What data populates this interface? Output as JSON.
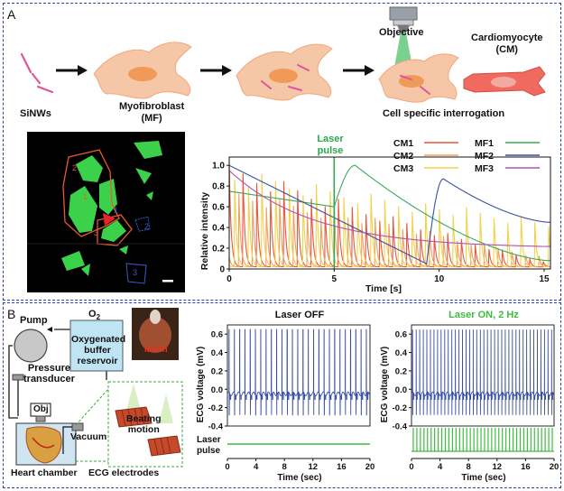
{
  "panel_a": {
    "letter": "A",
    "schematic": {
      "sinws": "SiNWs",
      "mf_line1": "Myofibroblast",
      "mf_line2": "(MF)",
      "objective": "Objective",
      "cm_line1": "Cardiomyocyte",
      "cm_line2": "(CM)",
      "interrogation": "Cell specific interrogation"
    },
    "micrograph": {
      "labels": [
        "1",
        "2",
        "3",
        "1",
        "2",
        "3"
      ]
    },
    "colors": {
      "CM1": "#e8553a",
      "CM2": "#f0a060",
      "CM3": "#f2d24a",
      "MF1": "#3aaa5a",
      "MF2": "#3a4fa0",
      "MF3": "#b052b8",
      "laser": "#2aa84a"
    },
    "chart_data": {
      "type": "line",
      "title": "",
      "xlabel": "Time [s]",
      "ylabel": "Relative intensity",
      "xlim": [
        0,
        15.3
      ],
      "ylim": [
        0,
        1.08
      ],
      "xticks": [
        "0",
        "5",
        "10",
        "15"
      ],
      "yticks": [
        "0",
        "0.2",
        "0.4",
        "0.6",
        "0.8",
        "1.0"
      ],
      "annotation": {
        "line1": "Laser",
        "line2": "pulse",
        "x": 5
      },
      "legend": [
        "CM1",
        "CM2",
        "CM3",
        "MF1",
        "MF2",
        "MF3"
      ],
      "series": [
        {
          "name": "CM1",
          "model": "beating",
          "period": 0.65,
          "start": 0.0,
          "decay_from": 1.0,
          "decay_to": 0.05
        },
        {
          "name": "CM2",
          "model": "beating",
          "period": 0.65,
          "start": 0.2,
          "decay_from": 0.8,
          "decay_to": 0.1
        },
        {
          "name": "CM3",
          "model": "beating",
          "period": 0.65,
          "start": 0.4,
          "decay_from": 0.97,
          "decay_to": 0.45
        },
        {
          "name": "MF1",
          "model": "pulse",
          "baseline": [
            0.75,
            0.6
          ],
          "onset": 5.0,
          "peak_time": 6.0,
          "peak": 1.0,
          "end": 0.08
        },
        {
          "name": "MF2",
          "model": "pulse",
          "baseline": [
            1.0,
            0.05
          ],
          "onset": 9.4,
          "peak_time": 10.2,
          "peak": 0.87,
          "end": 0.45
        },
        {
          "name": "MF3",
          "model": "decay",
          "start_value": 0.95,
          "end_value": 0.2
        }
      ]
    }
  },
  "panel_b": {
    "letter": "B",
    "schematic": {
      "pump": "Pump",
      "o2": "O",
      "o2_sub": "2",
      "buffer_line1": "Oxygenated",
      "buffer_line2": "buffer",
      "buffer_line3": "reservoir",
      "mesh": "Mesh",
      "pressure_line1": "Pressure",
      "pressure_line2": "transducer",
      "obj": "Obj",
      "vacuum": "Vacuum",
      "beating_line1": "Beating",
      "beating_line2": "motion",
      "heart_chamber": "Heart chamber",
      "ecg_electrodes": "ECG electrodes"
    },
    "colors": {
      "ecg": "#3a50a6",
      "laser_on": "#3dbd3d",
      "laser_off": "#3dbd3d"
    },
    "chart_data": [
      {
        "type": "line",
        "title": "Laser OFF",
        "xlabel": "Time (sec)",
        "ylabel": "ECG voltage (mV)",
        "xlim": [
          0,
          20
        ],
        "ylim": [
          -0.4,
          0.7
        ],
        "xticks": [
          "0",
          "4",
          "8",
          "12",
          "16",
          "20"
        ],
        "yticks": [
          "0.6",
          "0.4",
          "0.2",
          "0.0",
          "-0.2",
          "-0.4"
        ],
        "series": [
          {
            "name": "ECG",
            "model": "spikes",
            "beats": 27,
            "peak": 0.65,
            "trough": -0.28
          }
        ],
        "pulse_label_line1": "Laser",
        "pulse_label_line2": "pulse",
        "pulse": "none"
      },
      {
        "type": "line",
        "title": "Laser ON, 2 Hz",
        "xlabel": "Time (sec)",
        "ylabel": "ECG voltage (mV)",
        "xlim": [
          0,
          20
        ],
        "ylim": [
          -0.4,
          0.7
        ],
        "xticks": [
          "0",
          "4",
          "8",
          "12",
          "16",
          "20"
        ],
        "yticks": [
          "0.6",
          "0.4",
          "0.2",
          "0.0",
          "-0.2",
          "-0.4"
        ],
        "series": [
          {
            "name": "ECG",
            "model": "spikes",
            "beats": 40,
            "peak": 0.65,
            "trough": -0.28
          }
        ],
        "pulse": "2 Hz train"
      }
    ]
  }
}
